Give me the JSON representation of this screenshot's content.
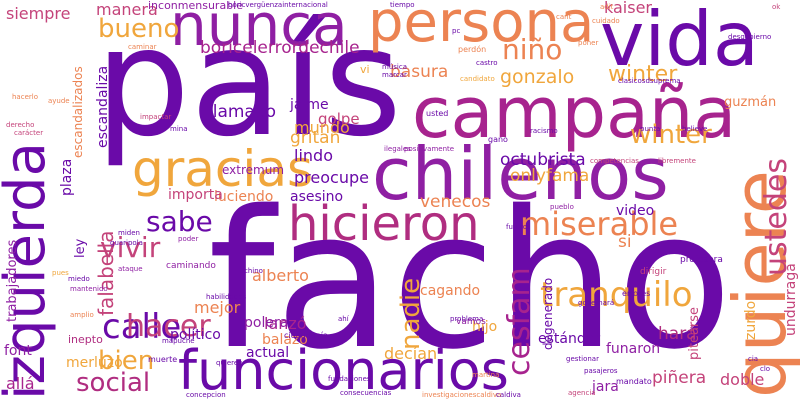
{
  "words": [
    {
      "text": "facho",
      "color": "#6a0aa8"
    },
    {
      "text": "país",
      "color": "#6a0aa8"
    },
    {
      "text": "chilenos",
      "color": "#8f1fa3"
    },
    {
      "text": "campaña",
      "color": "#a7238e"
    },
    {
      "text": "persona",
      "color": "#ec8352"
    },
    {
      "text": "vida",
      "color": "#6a0aa8"
    },
    {
      "text": "nunca",
      "color": "#8f1fa3"
    },
    {
      "text": "izquierda",
      "color": "#6a0aa8"
    },
    {
      "text": "quiere",
      "color": "#ec8352"
    },
    {
      "text": "funcionarios",
      "color": "#6a0aa8"
    },
    {
      "text": "gracias",
      "color": "#f0a63c"
    },
    {
      "text": "hicieron",
      "color": "#b02d80"
    },
    {
      "text": "miserable",
      "color": "#ec8352"
    },
    {
      "text": "ustedes",
      "color": "#c4437a"
    },
    {
      "text": "falabella",
      "color": "#c4437a"
    },
    {
      "text": "bueno",
      "color": "#f0a63c"
    },
    {
      "text": "niño",
      "color": "#ec8352"
    },
    {
      "text": "winter",
      "color": "#f0a63c"
    },
    {
      "text": "winter",
      "color": "#f0a63c"
    },
    {
      "text": "gonzalo",
      "color": "#f0a63c"
    },
    {
      "text": "calle",
      "color": "#6a0aa8"
    },
    {
      "text": "sabe",
      "color": "#6a0aa8"
    },
    {
      "text": "vivir",
      "color": "#c4437a"
    },
    {
      "text": "hacer",
      "color": "#c4437a"
    },
    {
      "text": "bien",
      "color": "#f0a63c"
    },
    {
      "text": "social",
      "color": "#b02d80"
    },
    {
      "text": "tranquilo",
      "color": "#f0a63c"
    },
    {
      "text": "cesfam",
      "color": "#a7238e"
    },
    {
      "text": "nadie",
      "color": "#f0a63c"
    },
    {
      "text": "octubrista",
      "color": "#6a0aa8"
    },
    {
      "text": "onlyfama",
      "color": "#f0a63c"
    },
    {
      "text": "boricelerrordechile",
      "color": "#a7238e"
    },
    {
      "text": "basura",
      "color": "#ec8352"
    },
    {
      "text": "manera",
      "color": "#c4437a"
    },
    {
      "text": "siempre",
      "color": "#c4437a"
    },
    {
      "text": "inconmensurable",
      "color": "#8f1fa3"
    },
    {
      "text": "kaiser",
      "color": "#c4437a"
    },
    {
      "text": "jaime",
      "color": "#6a0aa8"
    },
    {
      "text": "golpe",
      "color": "#c4437a"
    },
    {
      "text": "gritan",
      "color": "#f0a63c"
    },
    {
      "text": "llamado",
      "color": "#6a0aa8"
    },
    {
      "text": "mundo",
      "color": "#f0a63c"
    },
    {
      "text": "lindo",
      "color": "#6a0aa8"
    },
    {
      "text": "preocupe",
      "color": "#6a0aa8"
    },
    {
      "text": "extremum",
      "color": "#8f1fa3"
    },
    {
      "text": "asesino",
      "color": "#6a0aa8"
    },
    {
      "text": "luciendo",
      "color": "#ec8352"
    },
    {
      "text": "importa",
      "color": "#c4437a"
    },
    {
      "text": "venecos",
      "color": "#ec8352"
    },
    {
      "text": "video",
      "color": "#6a0aa8"
    },
    {
      "text": "alberto",
      "color": "#ec8352"
    },
    {
      "text": "lanzó",
      "color": "#a7238e"
    },
    {
      "text": "mejor",
      "color": "#ec8352"
    },
    {
      "text": "político",
      "color": "#6a0aa8"
    },
    {
      "text": "balazo",
      "color": "#ec8352"
    },
    {
      "text": "polera",
      "color": "#8f1fa3"
    },
    {
      "text": "actual",
      "color": "#6a0aa8"
    },
    {
      "text": "decían",
      "color": "#f0a63c"
    },
    {
      "text": "hijo",
      "color": "#f0a63c"
    },
    {
      "text": "cagando",
      "color": "#ec8352"
    },
    {
      "text": "funaron",
      "color": "#8f1fa3"
    },
    {
      "text": "hará",
      "color": "#b02d80"
    },
    {
      "text": "estándar",
      "color": "#6a0aa8"
    },
    {
      "text": "degenerado",
      "color": "#6a0aa8"
    },
    {
      "text": "piñera",
      "color": "#c4437a"
    },
    {
      "text": "doble",
      "color": "#c4437a"
    },
    {
      "text": "pitearse",
      "color": "#c4437a"
    },
    {
      "text": "zurdo",
      "color": "#f0a63c"
    },
    {
      "text": "undurraga",
      "color": "#c4437a"
    },
    {
      "text": "guzmán",
      "color": "#ec8352"
    },
    {
      "text": "si",
      "color": "#ec8352"
    },
    {
      "text": "jara",
      "color": "#8f1fa3"
    },
    {
      "text": "allá",
      "color": "#a7238e"
    },
    {
      "text": "font",
      "color": "#8f1fa3"
    },
    {
      "text": "merluzo",
      "color": "#f0a63c"
    },
    {
      "text": "plaza",
      "color": "#6a0aa8"
    },
    {
      "text": "escandaliza",
      "color": "#6a0aa8"
    },
    {
      "text": "escandalizados",
      "color": "#ec8352"
    },
    {
      "text": "ley",
      "color": "#6a0aa8"
    },
    {
      "text": "trabajadores",
      "color": "#8f1fa3"
    },
    {
      "text": "inepto",
      "color": "#b02d80"
    },
    {
      "text": "vi",
      "color": "#f0a63c"
    },
    {
      "text": "caminando",
      "color": "#8f1fa3"
    },
    {
      "text": "vamos",
      "color": "#8f1fa3"
    },
    {
      "text": "dirigir",
      "color": "#c4437a"
    },
    {
      "text": "profesora",
      "color": "#6a0aa8"
    },
    {
      "text": "errores",
      "color": "#6a0aa8"
    },
    {
      "text": "problema",
      "color": "#6a0aa8"
    },
    {
      "text": "mandato",
      "color": "#6a0aa8"
    },
    {
      "text": "perdón",
      "color": "#ec8352"
    },
    {
      "text": "candidato",
      "color": "#f0a63c"
    },
    {
      "text": "muerte",
      "color": "#6a0aa8"
    },
    {
      "text": "ciudadanía",
      "color": "#6a0aa8"
    },
    {
      "text": "amplio",
      "color": "#ec8352"
    },
    {
      "text": "mapuche",
      "color": "#6a0aa8"
    },
    {
      "text": "miedo",
      "color": "#6a0aa8"
    },
    {
      "text": "ataque",
      "color": "#8f1fa3"
    },
    {
      "text": "pueblo",
      "color": "#8f1fa3"
    },
    {
      "text": "futuro",
      "color": "#6a0aa8"
    },
    {
      "text": "racismo",
      "color": "#6a0aa8"
    },
    {
      "text": "poder",
      "color": "#8f1fa3"
    },
    {
      "text": "usted",
      "color": "#6a0aa8"
    },
    {
      "text": "gano",
      "color": "#6a0aa8"
    },
    {
      "text": "ilegales",
      "color": "#8f1fa3"
    },
    {
      "text": "derecho",
      "color": "#c4437a"
    },
    {
      "text": "hacerlo",
      "color": "#ec8352"
    },
    {
      "text": "ayude",
      "color": "#ec8352"
    },
    {
      "text": "carácter",
      "color": "#c4437a"
    },
    {
      "text": "miden",
      "color": "#6a0aa8"
    },
    {
      "text": "guaripola",
      "color": "#6a0aa8"
    },
    {
      "text": "mantenido",
      "color": "#8f1fa3"
    },
    {
      "text": "habilidades",
      "color": "#6a0aa8"
    },
    {
      "text": "chino",
      "color": "#6a0aa8"
    },
    {
      "text": "gobernará",
      "color": "#6a0aa8"
    },
    {
      "text": "pasajeros",
      "color": "#6a0aa8"
    },
    {
      "text": "consecuencias",
      "color": "#6a0aa8"
    },
    {
      "text": "martina",
      "color": "#ec8352"
    },
    {
      "text": "concepcion",
      "color": "#6a0aa8"
    },
    {
      "text": "quieren",
      "color": "#6a0aa8"
    },
    {
      "text": "fundaciones",
      "color": "#6a0aa8"
    },
    {
      "text": "investigacionescaldiva",
      "color": "#ec8352"
    },
    {
      "text": "agencia",
      "color": "#c4437a"
    },
    {
      "text": "caldiva",
      "color": "#6a0aa8"
    },
    {
      "text": "gestionar",
      "color": "#6a0aa8"
    },
    {
      "text": "pc",
      "color": "#6a0aa8"
    },
    {
      "text": "castro",
      "color": "#6a0aa8"
    },
    {
      "text": "música",
      "color": "#6a0aa8"
    },
    {
      "text": "marcar",
      "color": "#6a0aa8"
    },
    {
      "text": "caminar",
      "color": "#ec8352"
    },
    {
      "text": "poner",
      "color": "#ec8352"
    },
    {
      "text": "cuidado",
      "color": "#ec8352"
    },
    {
      "text": "desgobierno",
      "color": "#6a0aa8"
    },
    {
      "text": "clasicosdsuprema",
      "color": "#6a0aa8"
    },
    {
      "text": "believe",
      "color": "#6a0aa8"
    },
    {
      "text": "punta",
      "color": "#6a0aa8"
    },
    {
      "text": "competencias",
      "color": "#c4437a"
    },
    {
      "text": "libremente",
      "color": "#c4437a"
    },
    {
      "text": "positivamente",
      "color": "#8f1fa3"
    },
    {
      "text": "impactar",
      "color": "#c4437a"
    },
    {
      "text": "boricvergüenzainternacional",
      "color": "#6a0aa8"
    },
    {
      "text": "tiempo",
      "color": "#6a0aa8"
    },
    {
      "text": "ahí",
      "color": "#6a0aa8"
    },
    {
      "text": "cia",
      "color": "#6a0aa8"
    },
    {
      "text": "ok",
      "color": "#c4437a"
    },
    {
      "text": "clo",
      "color": "#6a0aa8"
    },
    {
      "text": "mina",
      "color": "#6a0aa8"
    },
    {
      "text": "cant",
      "color": "#ec8352"
    },
    {
      "text": "adit",
      "color": "#ec8352"
    },
    {
      "text": "pues",
      "color": "#f0a63c"
    }
  ]
}
